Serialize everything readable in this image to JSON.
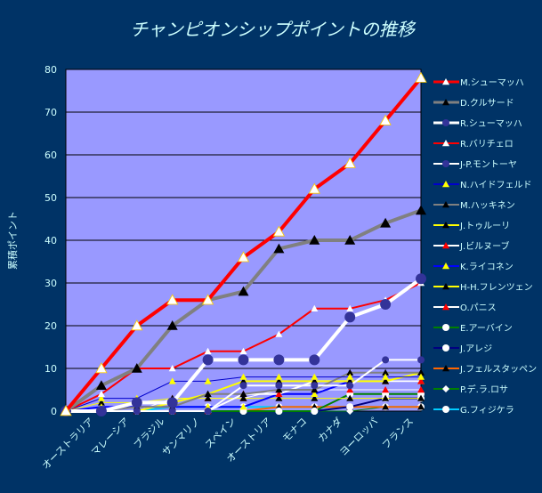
{
  "chart_data": {
    "type": "line",
    "title": "チャンピオンシップポイントの推移",
    "xlabel": "",
    "ylabel": "累積ポイント",
    "ylim": [
      0,
      80
    ],
    "yticks": [
      0,
      10,
      20,
      30,
      40,
      50,
      60,
      70,
      80
    ],
    "grid": true,
    "legend": "right",
    "categories": [
      "",
      "オーストラリア",
      "マレーシア",
      "ブラジル",
      "サンマリノ",
      "スペイン",
      "オーストリア",
      "モナコ",
      "カナダ",
      "ヨーロッパ",
      "フランス"
    ],
    "series": [
      {
        "name": "M.シューマッハ",
        "color": "#ff0000",
        "marker": "triangle",
        "markerColor": "#ffffff",
        "width": 4,
        "values": [
          0,
          10,
          20,
          26,
          26,
          36,
          42,
          52,
          58,
          68,
          78
        ]
      },
      {
        "name": "D.クルサード",
        "color": "#808080",
        "marker": "triangle",
        "markerColor": "#000000",
        "width": 4,
        "values": [
          0,
          6,
          10,
          20,
          26,
          28,
          38,
          40,
          40,
          44,
          47
        ]
      },
      {
        "name": "R.シューマッハ",
        "color": "#ffffff",
        "marker": "circle",
        "markerColor": "#333399",
        "width": 4,
        "values": [
          0,
          0,
          2,
          2,
          12,
          12,
          12,
          12,
          22,
          25,
          31
        ]
      },
      {
        "name": "R.バリチェロ",
        "color": "#ff0000",
        "marker": "triangle",
        "markerColor": "#ffffff",
        "width": 2,
        "values": [
          0,
          4,
          10,
          10,
          14,
          14,
          18,
          24,
          24,
          26,
          30
        ]
      },
      {
        "name": "J-P.モントーヤ",
        "color": "#ffffff",
        "marker": "circle",
        "markerColor": "#333399",
        "width": 2,
        "values": [
          0,
          0,
          0,
          0,
          0,
          6,
          6,
          6,
          6,
          12,
          12
        ]
      },
      {
        "name": "N.ハイドフェルド",
        "color": "#0000cc",
        "marker": "triangle",
        "markerColor": "#ffff00",
        "width": 1,
        "values": [
          0,
          3,
          3,
          7,
          7,
          8,
          8,
          8,
          8,
          8,
          8
        ]
      },
      {
        "name": "M.ハッキネン",
        "color": "#808080",
        "marker": "triangle",
        "markerColor": "#000000",
        "width": 2,
        "values": [
          0,
          0,
          1,
          1,
          4,
          4,
          5,
          5,
          9,
          9,
          9
        ]
      },
      {
        "name": "J.トゥルーリ",
        "color": "#ffff00",
        "marker": "triangle",
        "markerColor": "#000000",
        "width": 2,
        "values": [
          0,
          0,
          0,
          2,
          4,
          7,
          7,
          7,
          7,
          7,
          9
        ]
      },
      {
        "name": "J.ビルヌーブ",
        "color": "#ffffff",
        "marker": "triangle",
        "markerColor": "#ff0000",
        "width": 2,
        "values": [
          0,
          0,
          0,
          0,
          0,
          4,
          4,
          7,
          7,
          7,
          7
        ]
      },
      {
        "name": "K.ライコネン",
        "color": "#0000ff",
        "marker": "triangle",
        "markerColor": "#ffff00",
        "width": 2,
        "values": [
          0,
          1,
          1,
          1,
          1,
          1,
          4,
          4,
          7,
          7,
          7
        ]
      },
      {
        "name": "H-H.フレンツェン",
        "color": "#ffff00",
        "marker": "triangle",
        "markerColor": "#000000",
        "width": 1,
        "values": [
          0,
          2,
          2,
          3,
          3,
          3,
          3,
          3,
          3,
          3,
          3
        ]
      },
      {
        "name": "O.パニス",
        "color": "#ffffff",
        "marker": "triangle",
        "markerColor": "#ff0000",
        "width": 1,
        "values": [
          0,
          0,
          0,
          3,
          3,
          3,
          5,
          5,
          5,
          5,
          5
        ]
      },
      {
        "name": "E.アーバイン",
        "color": "#008000",
        "marker": "circle",
        "markerColor": "#ffffff",
        "width": 2,
        "values": [
          0,
          0,
          0,
          0,
          0,
          0,
          0,
          0,
          4,
          4,
          4
        ]
      },
      {
        "name": "J.アレジ",
        "color": "#000080",
        "marker": "circle",
        "markerColor": "#ffffff",
        "width": 2,
        "values": [
          0,
          0,
          0,
          0,
          0,
          0,
          0,
          0,
          1,
          3,
          3
        ]
      },
      {
        "name": "J.フェルスタッペン",
        "color": "#ff6600",
        "marker": "triangle",
        "markerColor": "#000000",
        "width": 2,
        "values": [
          0,
          0,
          0,
          0,
          0,
          0,
          1,
          1,
          1,
          1,
          1
        ]
      },
      {
        "name": "P.デ.ラ.ロサ",
        "color": "#008000",
        "marker": "diamond",
        "markerColor": "#ffffff",
        "width": 1,
        "values": [
          0,
          0,
          0,
          0,
          0,
          0,
          0,
          0,
          0,
          1,
          1
        ]
      },
      {
        "name": "G.フィジケラ",
        "color": "#00ccff",
        "marker": "circle",
        "markerColor": "#ffffff",
        "width": 2,
        "values": [
          0,
          0,
          0,
          1,
          1,
          1,
          1,
          1,
          1,
          1,
          1
        ]
      }
    ]
  }
}
